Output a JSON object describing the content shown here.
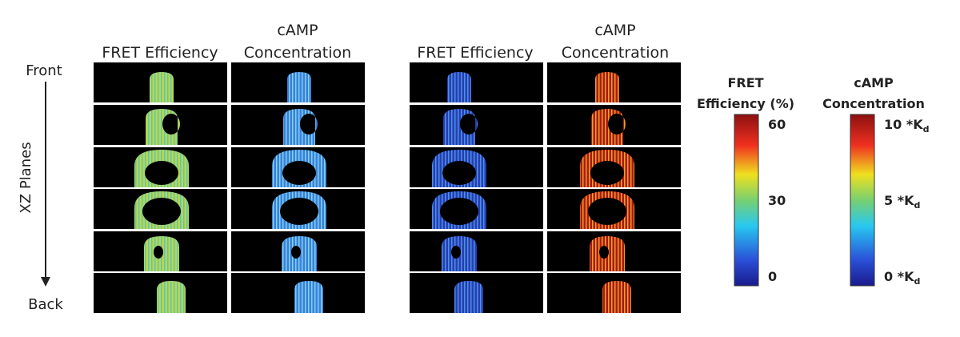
{
  "column_headers": [
    [
      "FRET Efficiency"
    ],
    [
      "cAMP",
      "Concentration"
    ],
    [
      "FRET Efficiency"
    ],
    [
      "cAMP",
      "Concentration"
    ]
  ],
  "axis": {
    "top": "Front",
    "label": "XZ Planes",
    "bottom": "Back"
  },
  "colorbars": [
    {
      "title": [
        "FRET",
        "Efficiency (%)"
      ],
      "ticks": [
        {
          "text": "60"
        },
        {
          "text": "30"
        },
        {
          "text": "0"
        }
      ]
    },
    {
      "title": [
        "cAMP",
        "Concentration"
      ],
      "ticks": [
        {
          "text": "10 *K",
          "sub": "d"
        },
        {
          "text": "5 *K",
          "sub": "d"
        },
        {
          "text": "0 *K",
          "sub": "d"
        }
      ]
    }
  ]
}
